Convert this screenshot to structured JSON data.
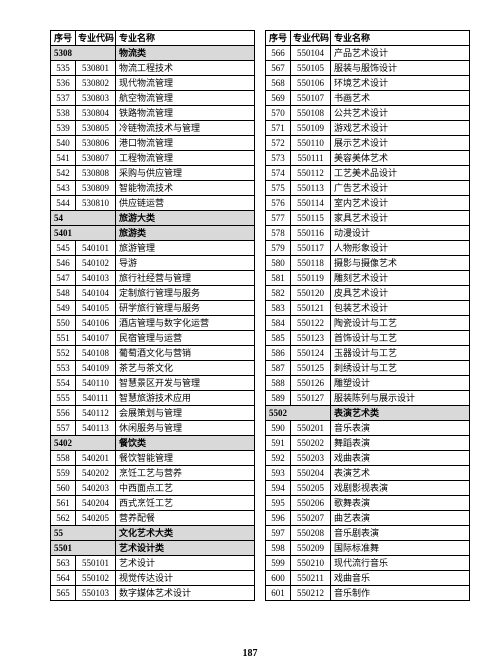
{
  "headers": {
    "seq": "序号",
    "code": "专业代码",
    "name": "专业名称"
  },
  "page_number": "187",
  "columns": [
    {
      "rows": [
        {
          "type": "cat",
          "code": "5308",
          "name": "物流类"
        },
        {
          "seq": "535",
          "code": "530801",
          "name": "物流工程技术"
        },
        {
          "seq": "536",
          "code": "530802",
          "name": "现代物流管理"
        },
        {
          "seq": "537",
          "code": "530803",
          "name": "航空物流管理"
        },
        {
          "seq": "538",
          "code": "530804",
          "name": "铁路物流管理"
        },
        {
          "seq": "539",
          "code": "530805",
          "name": "冷链物流技术与管理"
        },
        {
          "seq": "540",
          "code": "530806",
          "name": "港口物流管理"
        },
        {
          "seq": "541",
          "code": "530807",
          "name": "工程物流管理"
        },
        {
          "seq": "542",
          "code": "530808",
          "name": "采购与供应管理"
        },
        {
          "seq": "543",
          "code": "530809",
          "name": "智能物流技术"
        },
        {
          "seq": "544",
          "code": "530810",
          "name": "供应链运营"
        },
        {
          "type": "cat",
          "code": "54",
          "name": "旅游大类"
        },
        {
          "type": "cat",
          "code": "5401",
          "name": "旅游类"
        },
        {
          "seq": "545",
          "code": "540101",
          "name": "旅游管理"
        },
        {
          "seq": "546",
          "code": "540102",
          "name": "导游"
        },
        {
          "seq": "547",
          "code": "540103",
          "name": "旅行社经营与管理"
        },
        {
          "seq": "548",
          "code": "540104",
          "name": "定制旅行管理与服务"
        },
        {
          "seq": "549",
          "code": "540105",
          "name": "研学旅行管理与服务"
        },
        {
          "seq": "550",
          "code": "540106",
          "name": "酒店管理与数字化运营"
        },
        {
          "seq": "551",
          "code": "540107",
          "name": "民宿管理与运营"
        },
        {
          "seq": "552",
          "code": "540108",
          "name": "葡萄酒文化与营销"
        },
        {
          "seq": "553",
          "code": "540109",
          "name": "茶艺与茶文化"
        },
        {
          "seq": "554",
          "code": "540110",
          "name": "智慧景区开发与管理"
        },
        {
          "seq": "555",
          "code": "540111",
          "name": "智慧旅游技术应用"
        },
        {
          "seq": "556",
          "code": "540112",
          "name": "会展策划与管理"
        },
        {
          "seq": "557",
          "code": "540113",
          "name": "休闲服务与管理"
        },
        {
          "type": "cat",
          "code": "5402",
          "name": "餐饮类"
        },
        {
          "seq": "558",
          "code": "540201",
          "name": "餐饮智能管理"
        },
        {
          "seq": "559",
          "code": "540202",
          "name": "烹饪工艺与营养"
        },
        {
          "seq": "560",
          "code": "540203",
          "name": "中西面点工艺"
        },
        {
          "seq": "561",
          "code": "540204",
          "name": "西式烹饪工艺"
        },
        {
          "seq": "562",
          "code": "540205",
          "name": "营养配餐"
        },
        {
          "type": "cat",
          "code": "55",
          "name": "文化艺术大类"
        },
        {
          "type": "cat",
          "code": "5501",
          "name": "艺术设计类"
        },
        {
          "seq": "563",
          "code": "550101",
          "name": "艺术设计"
        },
        {
          "seq": "564",
          "code": "550102",
          "name": "视觉传达设计"
        },
        {
          "seq": "565",
          "code": "550103",
          "name": "数字媒体艺术设计"
        }
      ]
    },
    {
      "rows": [
        {
          "seq": "566",
          "code": "550104",
          "name": "产品艺术设计"
        },
        {
          "seq": "567",
          "code": "550105",
          "name": "服装与服饰设计"
        },
        {
          "seq": "568",
          "code": "550106",
          "name": "环境艺术设计"
        },
        {
          "seq": "569",
          "code": "550107",
          "name": "书画艺术"
        },
        {
          "seq": "570",
          "code": "550108",
          "name": "公共艺术设计"
        },
        {
          "seq": "571",
          "code": "550109",
          "name": "游戏艺术设计"
        },
        {
          "seq": "572",
          "code": "550110",
          "name": "展示艺术设计"
        },
        {
          "seq": "573",
          "code": "550111",
          "name": "美容美体艺术"
        },
        {
          "seq": "574",
          "code": "550112",
          "name": "工艺美术品设计"
        },
        {
          "seq": "575",
          "code": "550113",
          "name": "广告艺术设计"
        },
        {
          "seq": "576",
          "code": "550114",
          "name": "室内艺术设计"
        },
        {
          "seq": "577",
          "code": "550115",
          "name": "家具艺术设计"
        },
        {
          "seq": "578",
          "code": "550116",
          "name": "动漫设计"
        },
        {
          "seq": "579",
          "code": "550117",
          "name": "人物形象设计"
        },
        {
          "seq": "580",
          "code": "550118",
          "name": "摄影与摄像艺术"
        },
        {
          "seq": "581",
          "code": "550119",
          "name": "雕刻艺术设计"
        },
        {
          "seq": "582",
          "code": "550120",
          "name": "皮具艺术设计"
        },
        {
          "seq": "583",
          "code": "550121",
          "name": "包装艺术设计"
        },
        {
          "seq": "584",
          "code": "550122",
          "name": "陶瓷设计与工艺"
        },
        {
          "seq": "585",
          "code": "550123",
          "name": "首饰设计与工艺"
        },
        {
          "seq": "586",
          "code": "550124",
          "name": "玉器设计与工艺"
        },
        {
          "seq": "587",
          "code": "550125",
          "name": "刺绣设计与工艺"
        },
        {
          "seq": "588",
          "code": "550126",
          "name": "雕塑设计"
        },
        {
          "seq": "589",
          "code": "550127",
          "name": "服装陈列与展示设计"
        },
        {
          "type": "cat",
          "code": "5502",
          "name": "表演艺术类"
        },
        {
          "seq": "590",
          "code": "550201",
          "name": "音乐表演"
        },
        {
          "seq": "591",
          "code": "550202",
          "name": "舞蹈表演"
        },
        {
          "seq": "592",
          "code": "550203",
          "name": "戏曲表演"
        },
        {
          "seq": "593",
          "code": "550204",
          "name": "表演艺术"
        },
        {
          "seq": "594",
          "code": "550205",
          "name": "戏剧影视表演"
        },
        {
          "seq": "595",
          "code": "550206",
          "name": "歌舞表演"
        },
        {
          "seq": "596",
          "code": "550207",
          "name": "曲艺表演"
        },
        {
          "seq": "597",
          "code": "550208",
          "name": "音乐剧表演"
        },
        {
          "seq": "598",
          "code": "550209",
          "name": "国际标准舞"
        },
        {
          "seq": "599",
          "code": "550210",
          "name": "现代流行音乐"
        },
        {
          "seq": "600",
          "code": "550211",
          "name": "戏曲音乐"
        },
        {
          "seq": "601",
          "code": "550212",
          "name": "音乐制作"
        }
      ]
    }
  ]
}
